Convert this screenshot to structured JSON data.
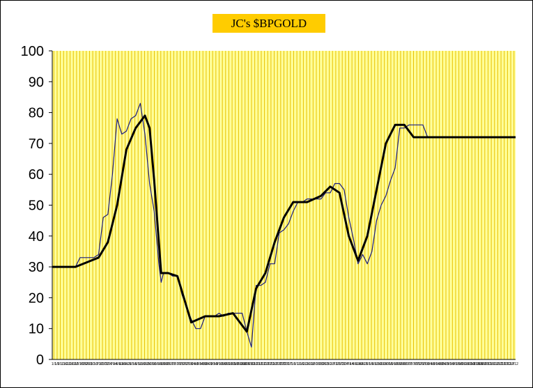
{
  "chart_data": {
    "type": "line",
    "title": "JC's $BPGOLD",
    "xlabel": "",
    "ylabel": "",
    "ylim": [
      0,
      100
    ],
    "yticks": [
      0,
      10,
      20,
      30,
      40,
      50,
      60,
      70,
      80,
      90,
      100
    ],
    "plot_background": "#ffff99",
    "gridline_color": "#e8c000",
    "x_tick_labels": [
      "1/1",
      "1/6",
      "1/11",
      "1/16",
      "1/21",
      "1/26",
      "1/31",
      "2/5",
      "2/10",
      "2/15",
      "2/20",
      "2/25",
      "3/2",
      "3/7",
      "3/12",
      "3/17",
      "3/22",
      "3/27",
      "4/1",
      "4/6",
      "4/11",
      "4/16",
      "4/21",
      "4/26",
      "5/1",
      "5/6",
      "5/11",
      "5/16",
      "5/21",
      "5/26",
      "5/31",
      "6/5",
      "6/10",
      "6/15",
      "6/20",
      "6/25",
      "6/30",
      "7/5",
      "7/10",
      "7/15",
      "7/20",
      "7/25",
      "7/30",
      "8/4",
      "8/9",
      "8/14",
      "8/19",
      "8/24",
      "8/29",
      "9/3",
      "9/8",
      "9/13",
      "9/18",
      "9/23",
      "9/28",
      "10/3",
      "10/8",
      "10/13",
      "10/18",
      "10/23",
      "10/28",
      "11/2",
      "11/7",
      "11/12",
      "11/17",
      "11/22",
      "11/27",
      "12/2",
      "12/7",
      "12/12",
      "12/17",
      "12/22",
      "12/27",
      "1/1",
      "1/6",
      "1/11",
      "1/16",
      "1/21",
      "1/26",
      "1/31",
      "2/5",
      "2/10",
      "2/15",
      "2/20",
      "2/25",
      "3/2",
      "3/7",
      "3/12",
      "3/17",
      "3/22",
      "3/27",
      "4/1",
      "4/6",
      "4/11",
      "4/16",
      "4/21",
      "4/26",
      "5/1",
      "5/6",
      "5/11",
      "5/16",
      "5/21",
      "5/26",
      "5/31",
      "6/5",
      "6/10",
      "6/15",
      "6/20",
      "6/25",
      "6/30",
      "7/5",
      "7/10",
      "7/15",
      "7/20",
      "7/25",
      "7/30",
      "8/4",
      "8/9",
      "8/14",
      "8/19",
      "8/24",
      "8/29",
      "9/3",
      "9/8",
      "9/13",
      "9/18",
      "9/23",
      "9/28",
      "10/3",
      "10/8",
      "10/13",
      "10/18",
      "10/23",
      "10/28",
      "11/2",
      "11/7",
      "11/12",
      "11/17",
      "11/22",
      "11/27",
      "12/2",
      "12/7",
      "12/12"
    ],
    "series": [
      {
        "color": "#1a1a80",
        "width": 1.2,
        "x": [
          0,
          0.05,
          0.06,
          0.08,
          0.09,
          0.1,
          0.11,
          0.12,
          0.13,
          0.14,
          0.15,
          0.16,
          0.17,
          0.18,
          0.19,
          0.2,
          0.21,
          0.22,
          0.23,
          0.235,
          0.24,
          0.25,
          0.26,
          0.27,
          0.275,
          0.28,
          0.29,
          0.3,
          0.31,
          0.32,
          0.33,
          0.34,
          0.35,
          0.36,
          0.37,
          0.38,
          0.39,
          0.4,
          0.41,
          0.42,
          0.43,
          0.44,
          0.45,
          0.46,
          0.47,
          0.48,
          0.49,
          0.5,
          0.51,
          0.52,
          0.53,
          0.54,
          0.55,
          0.56,
          0.57,
          0.58,
          0.59,
          0.6,
          0.61,
          0.62,
          0.63,
          0.64,
          0.65,
          0.66,
          0.67,
          0.68,
          0.69,
          0.7,
          0.71,
          0.72,
          0.73,
          0.74,
          0.75,
          0.76,
          0.77,
          0.78,
          0.79,
          0.8,
          0.81,
          0.82,
          0.83,
          0.84,
          0.85,
          0.86,
          0.87,
          0.88,
          0.89,
          0.9,
          0.91,
          0.92,
          0.93,
          0.94,
          0.95,
          0.96,
          0.97,
          0.98,
          0.99,
          1
        ],
        "values": [
          30,
          30,
          33,
          33,
          33,
          34,
          46,
          47,
          60,
          78,
          73,
          74,
          78,
          79,
          83,
          73,
          57,
          48,
          31,
          25,
          28,
          28,
          27,
          27,
          24,
          21,
          17,
          13,
          10,
          10,
          14,
          14,
          14,
          15,
          14,
          15,
          15,
          15,
          15,
          9,
          4,
          24,
          24,
          25,
          31,
          31,
          41,
          42,
          44,
          48,
          51,
          51,
          52,
          52,
          52,
          52,
          54,
          54,
          57,
          57,
          55,
          46,
          39,
          31,
          34,
          31,
          35,
          45,
          50,
          53,
          58,
          62,
          75,
          75,
          76,
          76,
          76,
          76,
          72,
          72,
          72,
          72,
          72,
          72,
          72,
          72,
          72,
          72,
          72,
          72,
          72,
          72,
          72,
          72,
          72,
          72,
          72,
          72
        ],
        "x_domain_fraction": true
      },
      {
        "color": "#000000",
        "width": 3,
        "x": [
          0,
          0.05,
          0.1,
          0.12,
          0.14,
          0.16,
          0.18,
          0.2,
          0.21,
          0.22,
          0.235,
          0.25,
          0.27,
          0.3,
          0.33,
          0.36,
          0.39,
          0.42,
          0.44,
          0.46,
          0.48,
          0.5,
          0.52,
          0.55,
          0.58,
          0.6,
          0.62,
          0.64,
          0.66,
          0.68,
          0.7,
          0.72,
          0.74,
          0.76,
          0.78,
          0.8,
          0.82,
          0.84,
          0.86,
          0.88,
          0.9,
          0.92,
          0.94,
          0.96,
          0.98,
          1
        ],
        "values": [
          30,
          30,
          33,
          38,
          50,
          68,
          75,
          79,
          75,
          58,
          28,
          28,
          27,
          12,
          14,
          14,
          15,
          9,
          23,
          28,
          38,
          46,
          51,
          51,
          53,
          56,
          54,
          40,
          32,
          40,
          55,
          70,
          76,
          76,
          72,
          72,
          72,
          72,
          72,
          72,
          72,
          72,
          72,
          72,
          72,
          72
        ],
        "x_domain_fraction": true
      }
    ]
  }
}
